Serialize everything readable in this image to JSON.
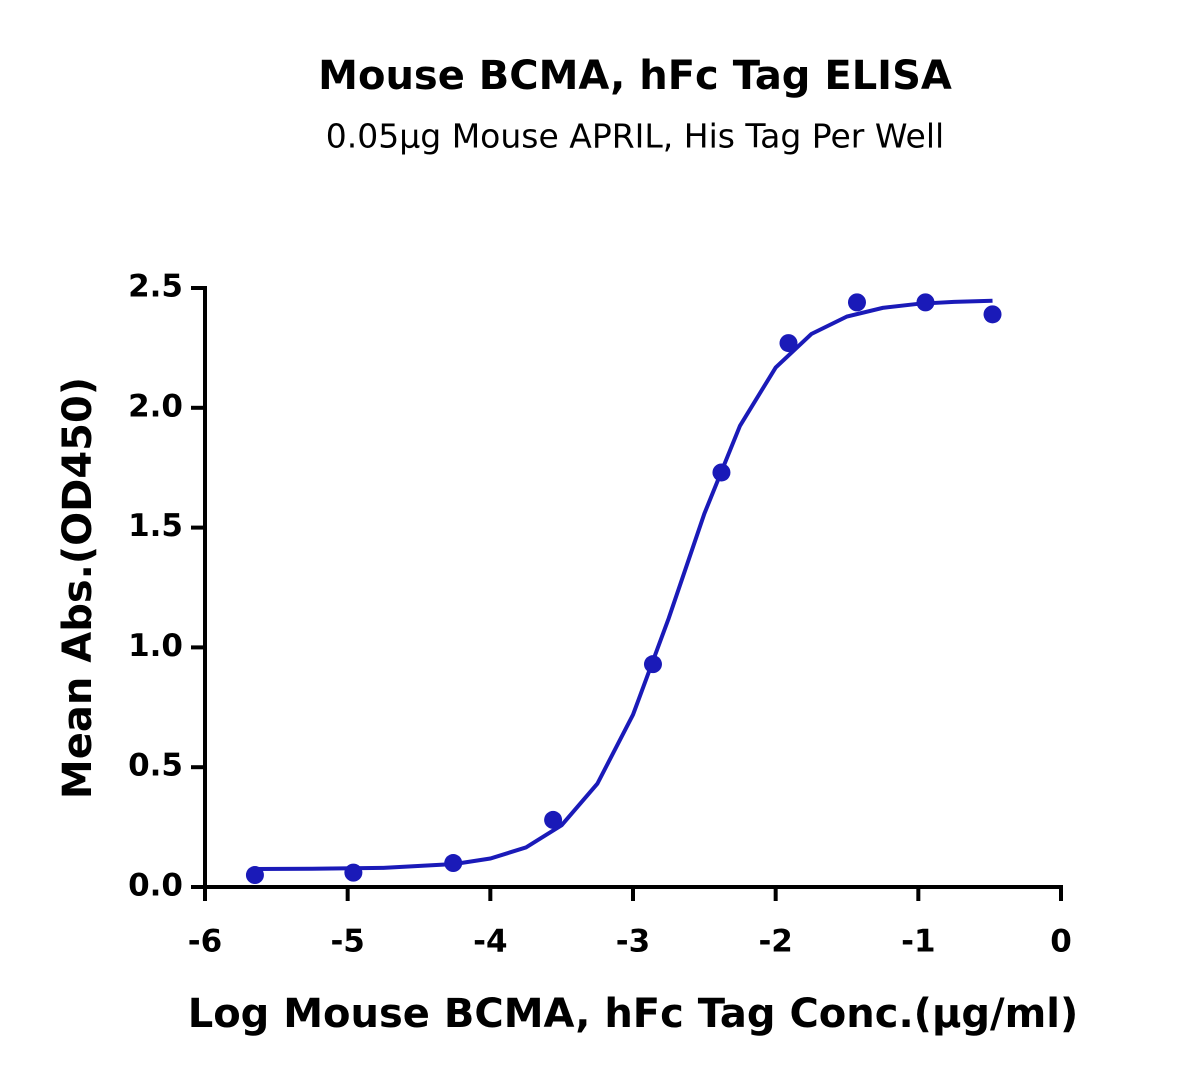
{
  "chart_data": {
    "type": "scatter",
    "title": "Mouse BCMA, hFc Tag ELISA",
    "subtitle": "0.05µg Mouse APRIL, His Tag Per Well",
    "xlabel": "Log Mouse BCMA, hFc Tag Conc.(µg/ml)",
    "ylabel": "Mean Abs.(OD450)",
    "color": "#1a1ab8",
    "x": [
      -5.65,
      -4.96,
      -4.26,
      -3.56,
      -2.86,
      -2.38,
      -1.91,
      -1.43,
      -0.95,
      -0.48
    ],
    "values": [
      0.05,
      0.06,
      0.1,
      0.28,
      0.93,
      1.73,
      2.27,
      2.44,
      2.44,
      2.39
    ],
    "curve": {
      "x": [
        -5.65,
        -5.25,
        -4.75,
        -4.25,
        -4.0,
        -3.75,
        -3.5,
        -3.25,
        -3.0,
        -2.75,
        -2.5,
        -2.25,
        -2.0,
        -1.75,
        -1.5,
        -1.25,
        -1.0,
        -0.75,
        -0.48
      ],
      "values": [
        0.075,
        0.076,
        0.08,
        0.096,
        0.119,
        0.165,
        0.258,
        0.431,
        0.719,
        1.121,
        1.558,
        1.925,
        2.168,
        2.308,
        2.381,
        2.417,
        2.434,
        2.442,
        2.447
      ]
    },
    "xlim": [
      -6,
      0
    ],
    "xticks": [
      -6,
      -5,
      -4,
      -3,
      -2,
      -1,
      0
    ],
    "ylim": [
      0,
      2.5
    ],
    "yticks": [
      {
        "value": 0,
        "label": "0.0"
      },
      0.5,
      {
        "value": 1,
        "label": "1.0"
      },
      1.5,
      {
        "value": 2,
        "label": "2.0"
      },
      2.5
    ],
    "grid": false
  }
}
